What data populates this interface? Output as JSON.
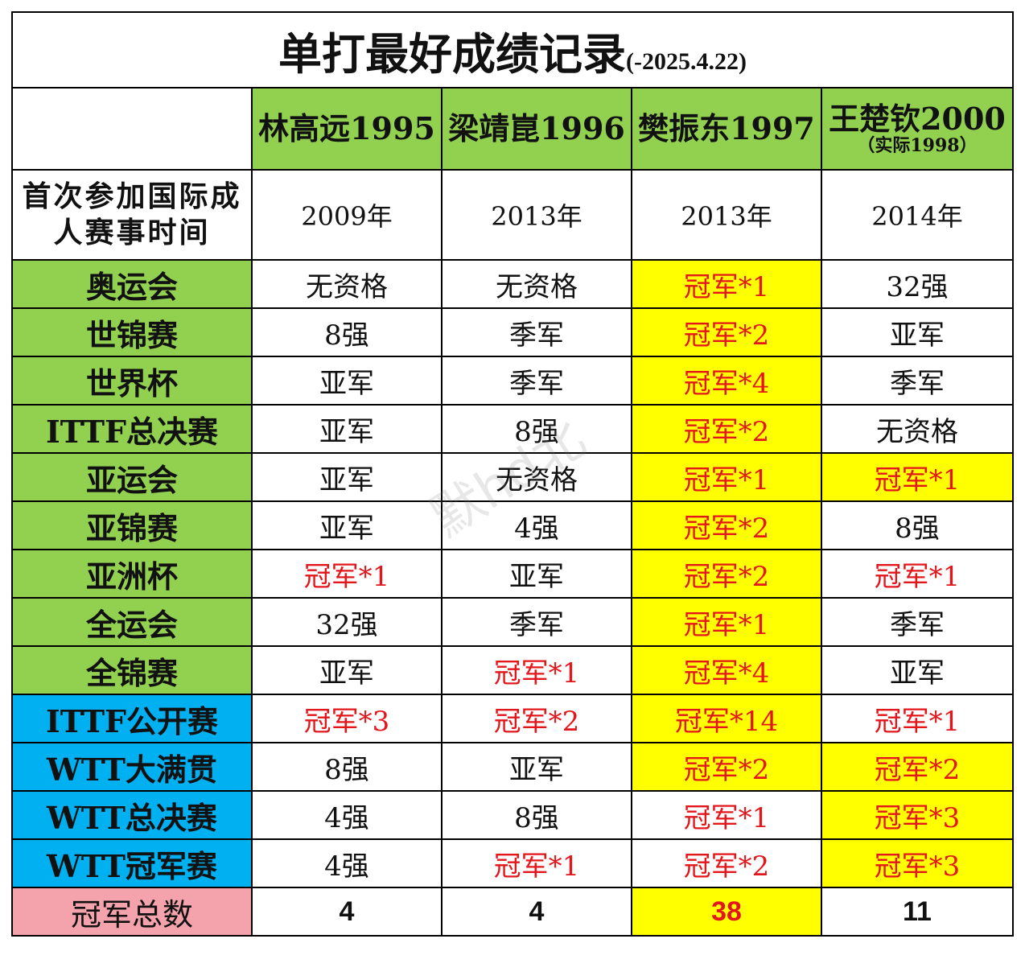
{
  "title": "单打最好成绩记录",
  "title_date": "(-2025.4.22)",
  "players": [
    {
      "name": "林高远1995",
      "sub": ""
    },
    {
      "name": "梁靖崑1996",
      "sub": ""
    },
    {
      "name": "樊振东1997",
      "sub": ""
    },
    {
      "name": "王楚钦2000",
      "sub": "（实际1998）"
    }
  ],
  "first_event": {
    "label": "首次参加国际成人赛事时间",
    "years": [
      "2009年",
      "2013年",
      "2013年",
      "2014年"
    ]
  },
  "rows": [
    {
      "label": "奥运会",
      "cells": [
        "无资格",
        "无资格",
        "冠军*1",
        "32强"
      ]
    },
    {
      "label": "世锦赛",
      "cells": [
        "8强",
        "季军",
        "冠军*2",
        "亚军"
      ]
    },
    {
      "label": "世界杯",
      "cells": [
        "亚军",
        "季军",
        "冠军*4",
        "季军"
      ]
    },
    {
      "label": "ITTF总决赛",
      "cells": [
        "亚军",
        "8强",
        "冠军*2",
        "无资格"
      ]
    },
    {
      "label": "亚运会",
      "cells": [
        "亚军",
        "无资格",
        "冠军*1",
        "冠军*1"
      ]
    },
    {
      "label": "亚锦赛",
      "cells": [
        "亚军",
        "4强",
        "冠军*2",
        "8强"
      ]
    },
    {
      "label": "亚洲杯",
      "cells": [
        "冠军*1",
        "亚军",
        "冠军*2",
        "冠军*1"
      ]
    },
    {
      "label": "全运会",
      "cells": [
        "32强",
        "季军",
        "冠军*1",
        "季军"
      ]
    },
    {
      "label": "全锦赛",
      "cells": [
        "亚军",
        "冠军*1",
        "冠军*4",
        "亚军"
      ]
    },
    {
      "label": "ITTF公开赛",
      "cells": [
        "冠军*3",
        "冠军*2",
        "冠军*14",
        "冠军*1"
      ]
    },
    {
      "label": "WTT大满贯",
      "cells": [
        "8强",
        "亚军",
        "冠军*2",
        "冠军*2"
      ]
    },
    {
      "label": "WTT总决赛",
      "cells": [
        "4强",
        "8强",
        "冠军*1",
        "冠军*3"
      ]
    },
    {
      "label": "WTT冠军赛",
      "cells": [
        "4强",
        "冠军*1",
        "冠军*2",
        "冠军*3"
      ]
    }
  ],
  "total": {
    "label": "冠军总数",
    "values": [
      "4",
      "4",
      "38",
      "11"
    ]
  },
  "watermark": "默hd北",
  "colors": {
    "green": "#92d050",
    "blue": "#00b0f0",
    "pink": "#f4a3ad",
    "yellow": "#ffff00",
    "red": "#e3161b"
  }
}
